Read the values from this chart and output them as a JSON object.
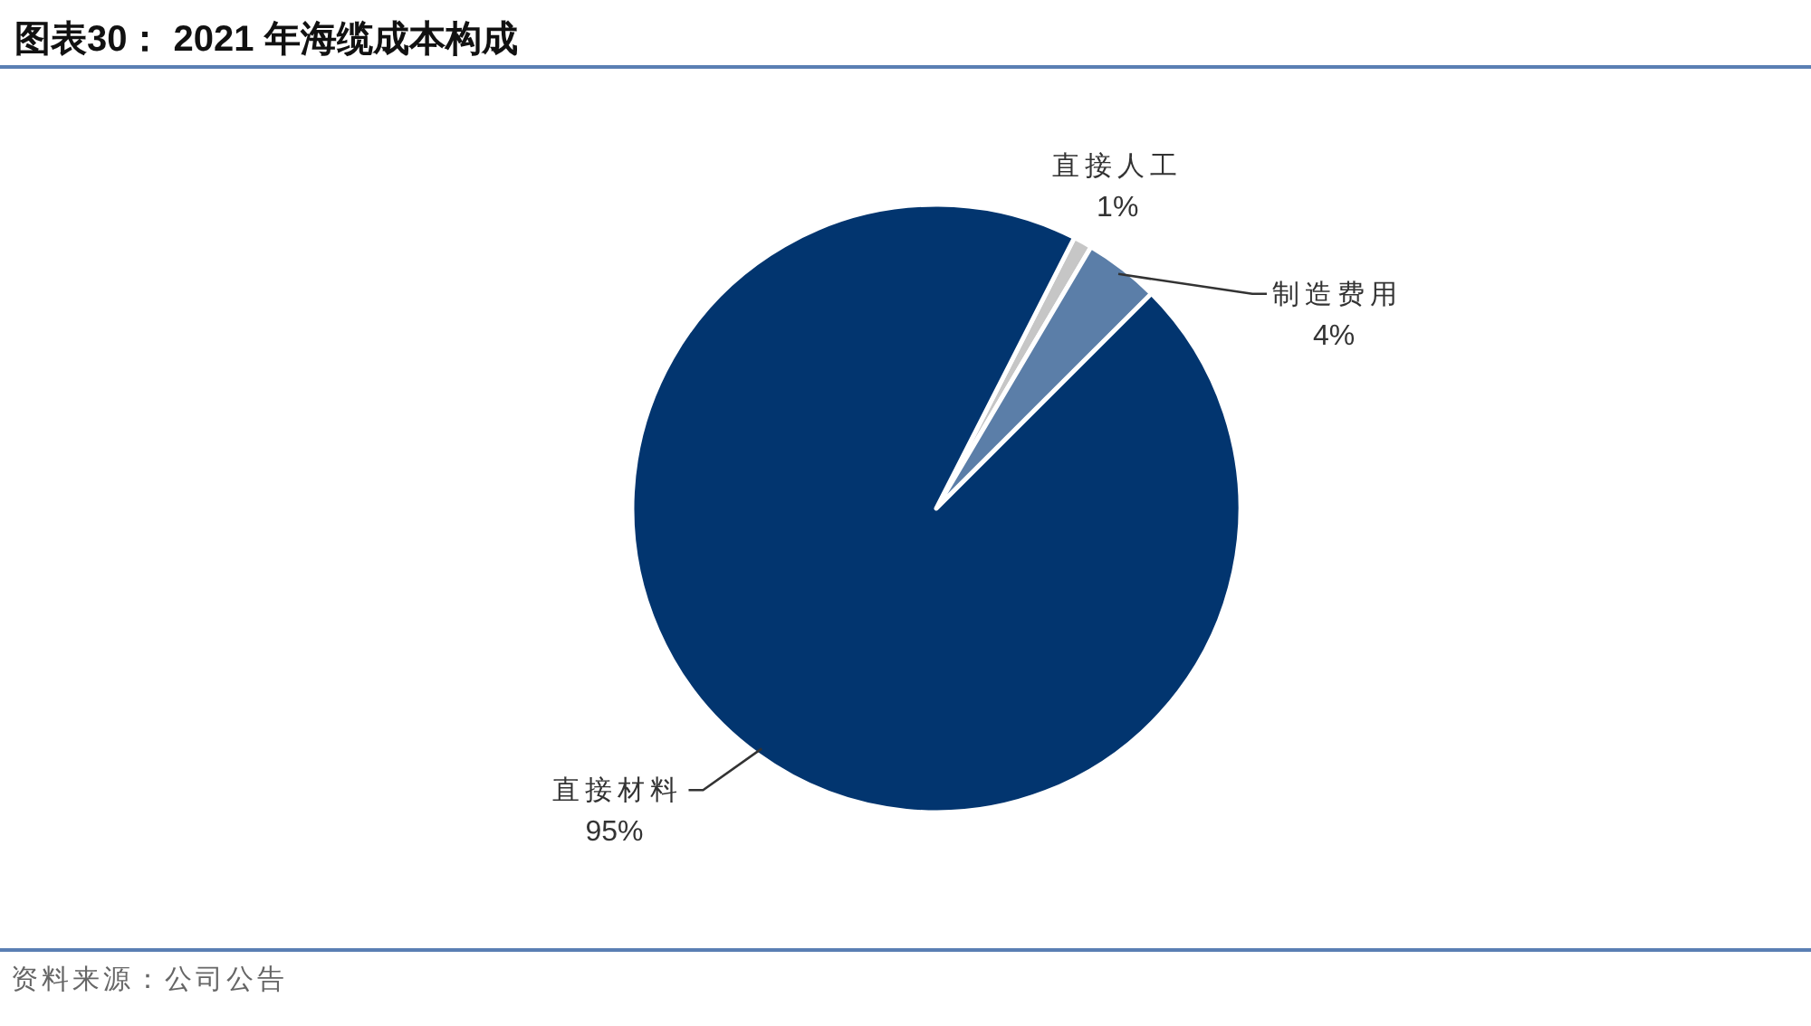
{
  "chart_data": {
    "type": "pie",
    "title": "图表30： 2021 年海缆成本构成",
    "categories": [
      "直接人工",
      "制造费用",
      "直接材料"
    ],
    "values": [
      1,
      4,
      95
    ],
    "colors": [
      "#c6c6c6",
      "#5b7ea8",
      "#02356f"
    ],
    "value_labels": [
      "1%",
      "4%",
      "95%"
    ],
    "annotations": [
      "资料来源：公司公告"
    ]
  }
}
